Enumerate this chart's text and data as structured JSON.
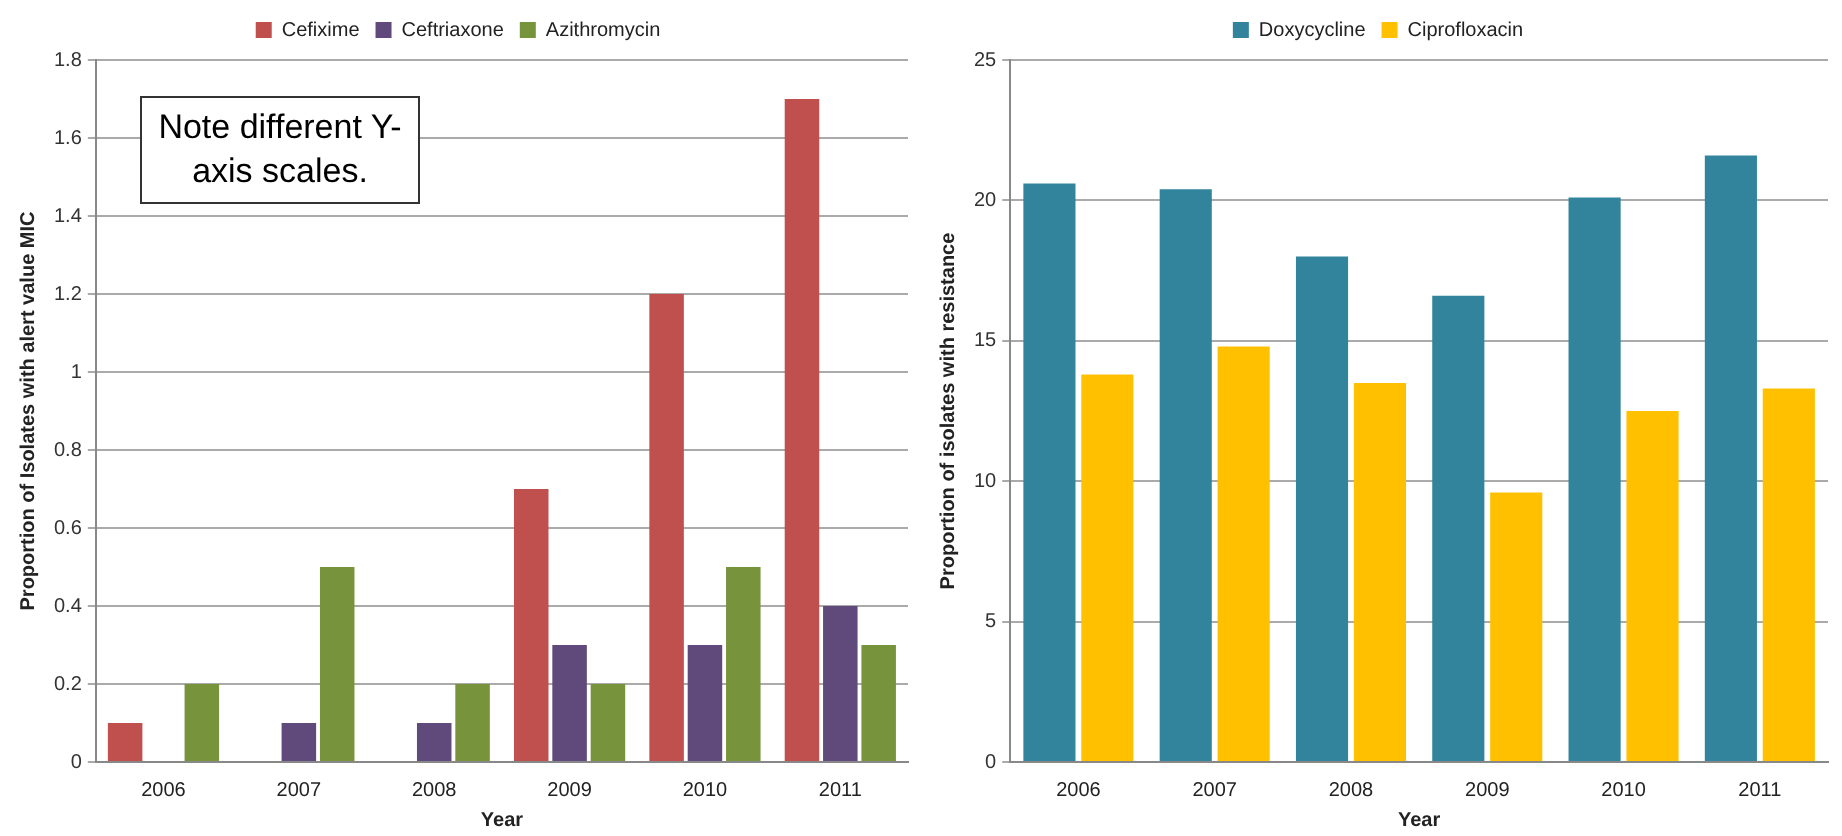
{
  "chart_data": [
    {
      "type": "bar",
      "categories": [
        "2006",
        "2007",
        "2008",
        "2009",
        "2010",
        "2011"
      ],
      "series": [
        {
          "name": "Cefixime",
          "color": "#c0504d",
          "values": [
            0.1,
            0,
            0,
            0.7,
            1.2,
            1.7
          ]
        },
        {
          "name": "Ceftriaxone",
          "color": "#604a7b",
          "values": [
            0,
            0.1,
            0.1,
            0.3,
            0.3,
            0.4
          ]
        },
        {
          "name": "Azithromycin",
          "color": "#77933c",
          "values": [
            0.2,
            0.5,
            0.2,
            0.2,
            0.5,
            0.3
          ]
        }
      ],
      "xlabel": "Year",
      "ylabel": "Proportion of Isolates with alert value MIC",
      "ylim": [
        0,
        1.8
      ],
      "yticks": [
        0,
        0.2,
        0.4,
        0.6,
        0.8,
        1,
        1.2,
        1.4,
        1.6,
        1.8
      ],
      "grid": "y",
      "legend": "top",
      "annotations": [
        "Note different Y-axis scales."
      ]
    },
    {
      "type": "bar",
      "categories": [
        "2006",
        "2007",
        "2008",
        "2009",
        "2010",
        "2011"
      ],
      "series": [
        {
          "name": "Doxycycline",
          "color": "#31849b",
          "values": [
            20.6,
            20.4,
            18.0,
            16.6,
            20.1,
            21.6
          ]
        },
        {
          "name": "Ciprofloxacin",
          "color": "#ffc000",
          "values": [
            13.8,
            14.8,
            13.5,
            9.6,
            12.5,
            13.3
          ]
        }
      ],
      "xlabel": "Year",
      "ylabel": "Proportion of isolates with resistance",
      "ylim": [
        0,
        25
      ],
      "yticks": [
        0,
        5,
        10,
        15,
        20,
        25
      ],
      "grid": "y",
      "legend": "top"
    }
  ]
}
